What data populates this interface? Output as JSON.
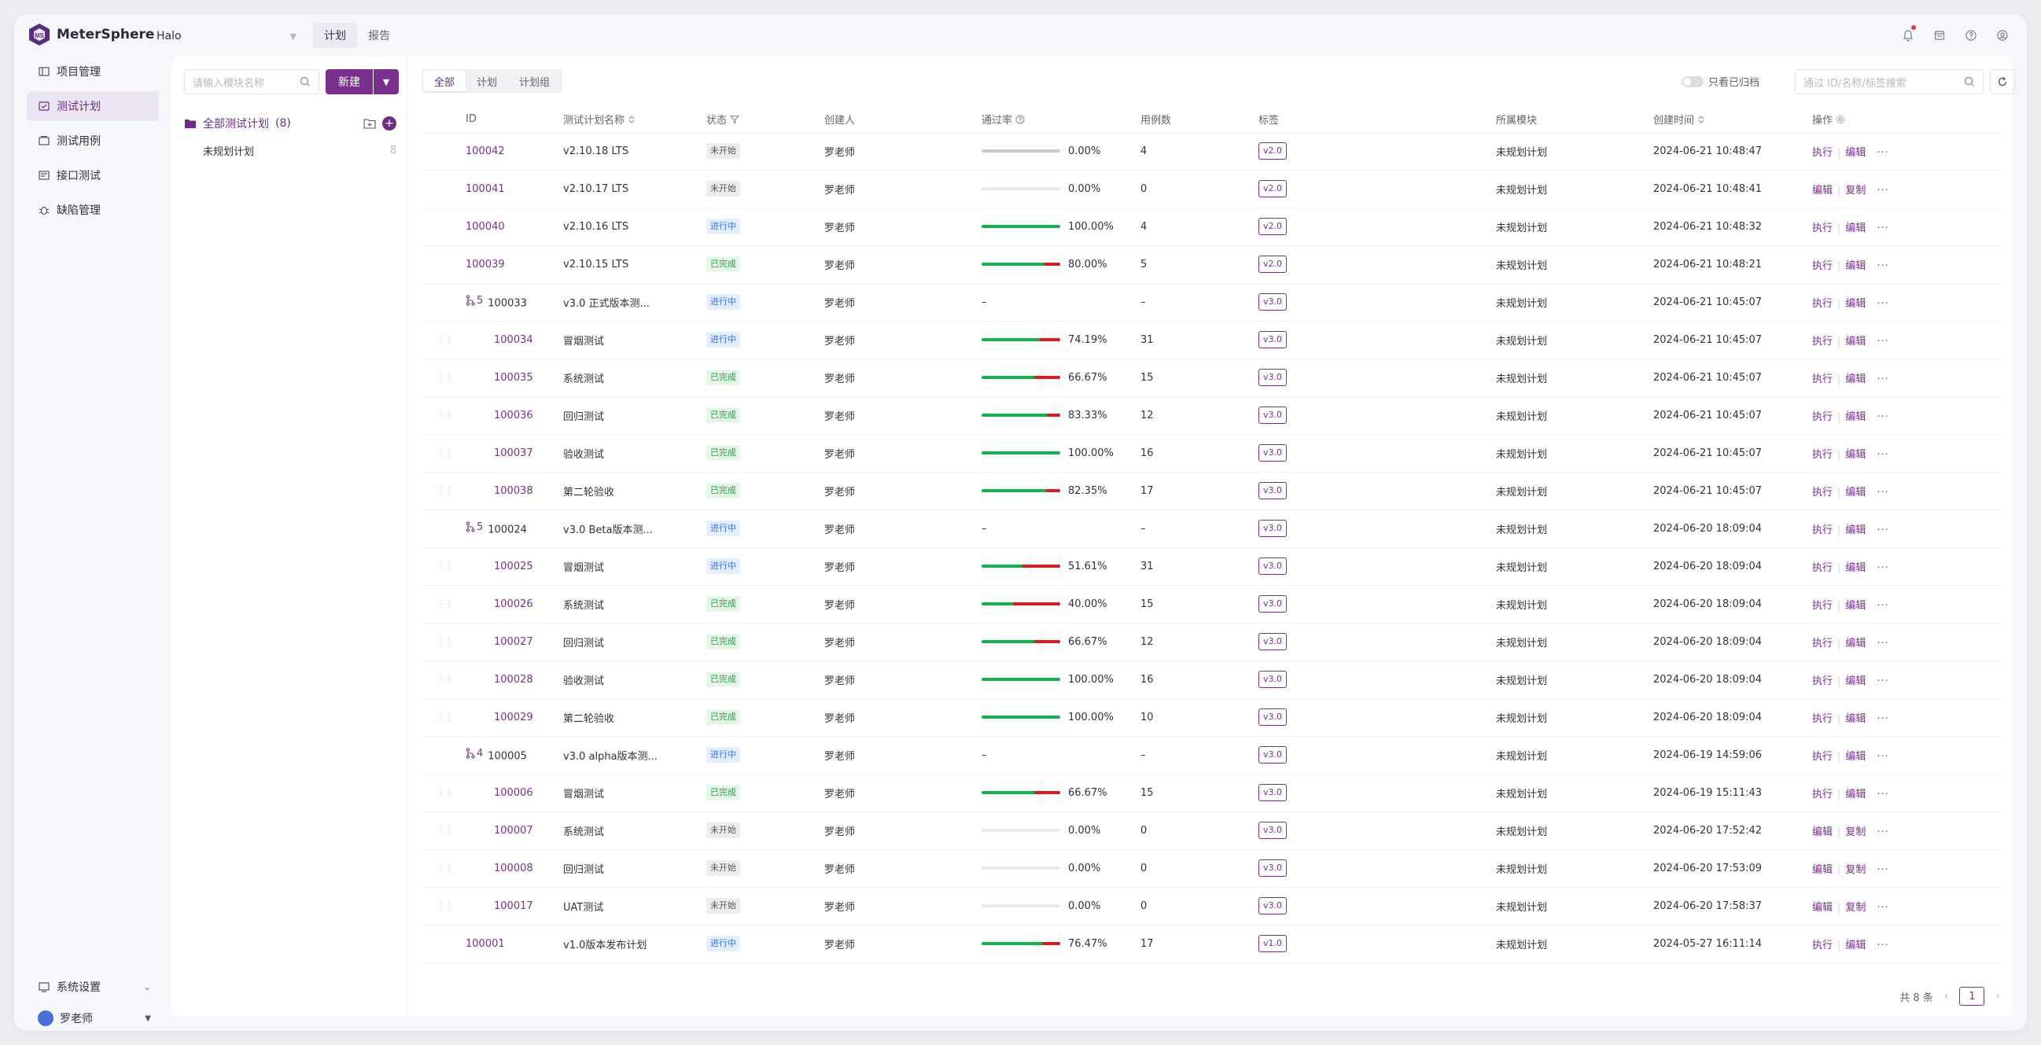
{
  "brand": {
    "name": "MeterSphere"
  },
  "project": {
    "name": "Halo"
  },
  "top_tabs": [
    {
      "label": "计划",
      "active": true
    },
    {
      "label": "报告",
      "active": false
    }
  ],
  "nav": {
    "items": [
      {
        "label": "项目管理",
        "icon": "project-icon",
        "active": false
      },
      {
        "label": "测试计划",
        "icon": "test-plan-icon",
        "active": true
      },
      {
        "label": "测试用例",
        "icon": "test-case-icon",
        "active": false
      },
      {
        "label": "接口测试",
        "icon": "api-test-icon",
        "active": false
      },
      {
        "label": "缺陷管理",
        "icon": "bug-icon",
        "active": false
      }
    ],
    "settings_label": "系统设置",
    "user_label": "罗老师"
  },
  "tree": {
    "search_placeholder": "请输入模块名称",
    "new_label": "新建",
    "root_label": "全部测试计划",
    "root_count": "(8)",
    "child_label": "未规划计划",
    "child_count": "8"
  },
  "toolbar": {
    "segments": [
      {
        "label": "全部",
        "active": true
      },
      {
        "label": "计划",
        "active": false
      },
      {
        "label": "计划组",
        "active": false
      }
    ],
    "archive_label": "只看已归档",
    "search_placeholder": "通过 ID/名称/标签搜索"
  },
  "table": {
    "headers": [
      "ID",
      "测试计划名称",
      "状态",
      "创建人",
      "通过率",
      "用例数",
      "标签",
      "所属模块",
      "创建时间",
      "操作"
    ],
    "rows": [
      {
        "id": "100042",
        "name": "v2.10.18 LTS",
        "status": "未开始",
        "st": "todo",
        "creator": "罗老师",
        "pass": 0,
        "fail": 0,
        "rate": "0.00%",
        "bar": "todo",
        "cases": "4",
        "tag": "v2.0",
        "module": "未规划计划",
        "time": "2024-06-21 10:48:47",
        "op1": "执行",
        "op2": "编辑",
        "level": "top"
      },
      {
        "id": "100041",
        "name": "v2.10.17 LTS",
        "status": "未开始",
        "st": "todo",
        "creator": "罗老师",
        "pass": 0,
        "fail": 0,
        "rate": "0.00%",
        "bar": "empty",
        "cases": "0",
        "tag": "v2.0",
        "module": "未规划计划",
        "time": "2024-06-21 10:48:41",
        "op1": "编辑",
        "op2": "复制",
        "level": "top"
      },
      {
        "id": "100040",
        "name": "v2.10.16 LTS",
        "status": "进行中",
        "st": "doing",
        "creator": "罗老师",
        "pass": 100,
        "fail": 0,
        "rate": "100.00%",
        "bar": "normal",
        "cases": "4",
        "tag": "v2.0",
        "module": "未规划计划",
        "time": "2024-06-21 10:48:32",
        "op1": "执行",
        "op2": "编辑",
        "level": "top"
      },
      {
        "id": "100039",
        "name": "v2.10.15 LTS",
        "status": "已完成",
        "st": "done",
        "creator": "罗老师",
        "pass": 80,
        "fail": 20,
        "rate": "80.00%",
        "bar": "normal",
        "cases": "5",
        "tag": "v2.0",
        "module": "未规划计划",
        "time": "2024-06-21 10:48:21",
        "op1": "执行",
        "op2": "编辑",
        "level": "top"
      },
      {
        "id": "100033",
        "name": "v3.0 正式版本测...",
        "status": "进行中",
        "st": "doing",
        "creator": "罗老师",
        "pass": 0,
        "fail": 0,
        "rate": "–",
        "bar": "none",
        "cases": "–",
        "tag": "v3.0",
        "module": "未规划计划",
        "time": "2024-06-21 10:45:07",
        "op1": "执行",
        "op2": "编辑",
        "level": "group",
        "group_count": "5"
      },
      {
        "id": "100034",
        "name": "冒烟测试",
        "status": "进行中",
        "st": "doing",
        "creator": "罗老师",
        "pass": 74,
        "fail": 26,
        "rate": "74.19%",
        "bar": "normal",
        "cases": "31",
        "tag": "v3.0",
        "module": "未规划计划",
        "time": "2024-06-21 10:45:07",
        "op1": "执行",
        "op2": "编辑",
        "level": "child"
      },
      {
        "id": "100035",
        "name": "系统测试",
        "status": "已完成",
        "st": "done",
        "creator": "罗老师",
        "pass": 67,
        "fail": 33,
        "rate": "66.67%",
        "bar": "normal",
        "cases": "15",
        "tag": "v3.0",
        "module": "未规划计划",
        "time": "2024-06-21 10:45:07",
        "op1": "执行",
        "op2": "编辑",
        "level": "child"
      },
      {
        "id": "100036",
        "name": "回归测试",
        "status": "已完成",
        "st": "done",
        "creator": "罗老师",
        "pass": 83,
        "fail": 17,
        "rate": "83.33%",
        "bar": "normal",
        "cases": "12",
        "tag": "v3.0",
        "module": "未规划计划",
        "time": "2024-06-21 10:45:07",
        "op1": "执行",
        "op2": "编辑",
        "level": "child"
      },
      {
        "id": "100037",
        "name": "验收测试",
        "status": "已完成",
        "st": "done",
        "creator": "罗老师",
        "pass": 100,
        "fail": 0,
        "rate": "100.00%",
        "bar": "normal",
        "cases": "16",
        "tag": "v3.0",
        "module": "未规划计划",
        "time": "2024-06-21 10:45:07",
        "op1": "执行",
        "op2": "编辑",
        "level": "child"
      },
      {
        "id": "100038",
        "name": "第二轮验收",
        "status": "已完成",
        "st": "done",
        "creator": "罗老师",
        "pass": 82,
        "fail": 18,
        "rate": "82.35%",
        "bar": "normal",
        "cases": "17",
        "tag": "v3.0",
        "module": "未规划计划",
        "time": "2024-06-21 10:45:07",
        "op1": "执行",
        "op2": "编辑",
        "level": "child"
      },
      {
        "id": "100024",
        "name": "v3.0 Beta版本测...",
        "status": "进行中",
        "st": "doing",
        "creator": "罗老师",
        "pass": 0,
        "fail": 0,
        "rate": "–",
        "bar": "none",
        "cases": "–",
        "tag": "v3.0",
        "module": "未规划计划",
        "time": "2024-06-20 18:09:04",
        "op1": "执行",
        "op2": "编辑",
        "level": "group",
        "group_count": "5"
      },
      {
        "id": "100025",
        "name": "冒烟测试",
        "status": "进行中",
        "st": "doing",
        "creator": "罗老师",
        "pass": 52,
        "fail": 48,
        "rate": "51.61%",
        "bar": "normal",
        "cases": "31",
        "tag": "v3.0",
        "module": "未规划计划",
        "time": "2024-06-20 18:09:04",
        "op1": "执行",
        "op2": "编辑",
        "level": "child"
      },
      {
        "id": "100026",
        "name": "系统测试",
        "status": "已完成",
        "st": "done",
        "creator": "罗老师",
        "pass": 40,
        "fail": 60,
        "rate": "40.00%",
        "bar": "normal",
        "cases": "15",
        "tag": "v3.0",
        "module": "未规划计划",
        "time": "2024-06-20 18:09:04",
        "op1": "执行",
        "op2": "编辑",
        "level": "child"
      },
      {
        "id": "100027",
        "name": "回归测试",
        "status": "已完成",
        "st": "done",
        "creator": "罗老师",
        "pass": 67,
        "fail": 33,
        "rate": "66.67%",
        "bar": "normal",
        "cases": "12",
        "tag": "v3.0",
        "module": "未规划计划",
        "time": "2024-06-20 18:09:04",
        "op1": "执行",
        "op2": "编辑",
        "level": "child"
      },
      {
        "id": "100028",
        "name": "验收测试",
        "status": "已完成",
        "st": "done",
        "creator": "罗老师",
        "pass": 100,
        "fail": 0,
        "rate": "100.00%",
        "bar": "normal",
        "cases": "16",
        "tag": "v3.0",
        "module": "未规划计划",
        "time": "2024-06-20 18:09:04",
        "op1": "执行",
        "op2": "编辑",
        "level": "child"
      },
      {
        "id": "100029",
        "name": "第二轮验收",
        "status": "已完成",
        "st": "done",
        "creator": "罗老师",
        "pass": 100,
        "fail": 0,
        "rate": "100.00%",
        "bar": "normal",
        "cases": "10",
        "tag": "v3.0",
        "module": "未规划计划",
        "time": "2024-06-20 18:09:04",
        "op1": "执行",
        "op2": "编辑",
        "level": "child"
      },
      {
        "id": "100005",
        "name": "v3.0 alpha版本测...",
        "status": "进行中",
        "st": "doing",
        "creator": "罗老师",
        "pass": 0,
        "fail": 0,
        "rate": "–",
        "bar": "none",
        "cases": "–",
        "tag": "v3.0",
        "module": "未规划计划",
        "time": "2024-06-19 14:59:06",
        "op1": "执行",
        "op2": "编辑",
        "level": "group",
        "group_count": "4"
      },
      {
        "id": "100006",
        "name": "冒烟测试",
        "status": "已完成",
        "st": "done",
        "creator": "罗老师",
        "pass": 67,
        "fail": 33,
        "rate": "66.67%",
        "bar": "normal",
        "cases": "15",
        "tag": "v3.0",
        "module": "未规划计划",
        "time": "2024-06-19 15:11:43",
        "op1": "执行",
        "op2": "编辑",
        "level": "child"
      },
      {
        "id": "100007",
        "name": "系统测试",
        "status": "未开始",
        "st": "todo",
        "creator": "罗老师",
        "pass": 0,
        "fail": 0,
        "rate": "0.00%",
        "bar": "empty",
        "cases": "0",
        "tag": "v3.0",
        "module": "未规划计划",
        "time": "2024-06-20 17:52:42",
        "op1": "编辑",
        "op2": "复制",
        "level": "child"
      },
      {
        "id": "100008",
        "name": "回归测试",
        "status": "未开始",
        "st": "todo",
        "creator": "罗老师",
        "pass": 0,
        "fail": 0,
        "rate": "0.00%",
        "bar": "empty",
        "cases": "0",
        "tag": "v3.0",
        "module": "未规划计划",
        "time": "2024-06-20 17:53:09",
        "op1": "编辑",
        "op2": "复制",
        "level": "child"
      },
      {
        "id": "100017",
        "name": "UAT测试",
        "status": "未开始",
        "st": "todo",
        "creator": "罗老师",
        "pass": 0,
        "fail": 0,
        "rate": "0.00%",
        "bar": "empty",
        "cases": "0",
        "tag": "v3.0",
        "module": "未规划计划",
        "time": "2024-06-20 17:58:37",
        "op1": "编辑",
        "op2": "复制",
        "level": "child"
      },
      {
        "id": "100001",
        "name": "v1.0版本发布计划",
        "status": "进行中",
        "st": "doing",
        "creator": "罗老师",
        "pass": 77,
        "fail": 23,
        "rate": "76.47%",
        "bar": "normal",
        "cases": "17",
        "tag": "v1.0",
        "module": "未规划计划",
        "time": "2024-05-27 16:11:14",
        "op1": "执行",
        "op2": "编辑",
        "level": "top"
      }
    ]
  },
  "pager": {
    "total": "共 8 条",
    "page": "1"
  },
  "colors": {
    "brand": "#7a2e8e",
    "pass": "#19b04b",
    "fail": "#d81e1e"
  }
}
